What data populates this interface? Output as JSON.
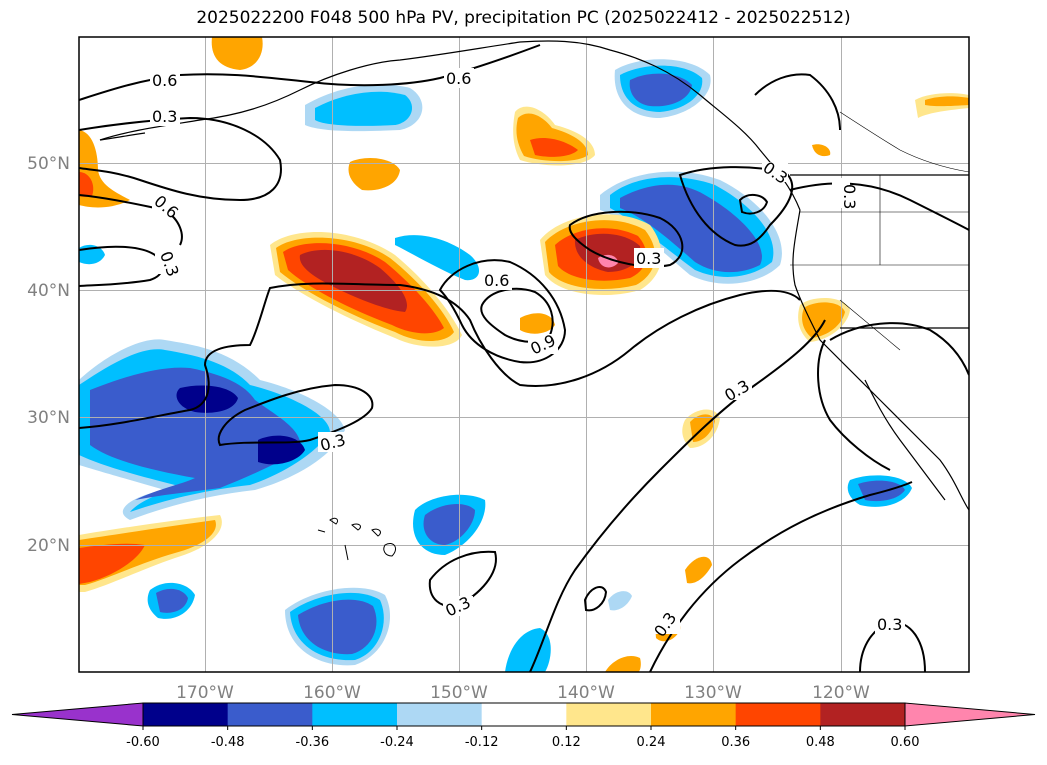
{
  "title": "2025022200 F048 500 hPa PV, precipitation PC (2025022412 - 2025022512)",
  "map": {
    "lon_range": [
      -180,
      -110
    ],
    "lat_range": [
      10,
      60
    ],
    "lon_ticks": [
      "170°W",
      "160°W",
      "150°W",
      "140°W",
      "130°W",
      "120°W"
    ],
    "lat_ticks": [
      "20°N",
      "30°N",
      "40°N",
      "50°N"
    ],
    "grid": true,
    "contour_labels": [
      "0.6",
      "0.3",
      "0.6",
      "0.6",
      "0.3",
      "0.6",
      "0.9",
      "0.3",
      "0.3",
      "0.3",
      "0.3",
      "0.3",
      "0.3",
      "0.3",
      "0.3"
    ]
  },
  "colorbar": {
    "levels": [
      "-0.60",
      "-0.48",
      "-0.36",
      "-0.24",
      "-0.12",
      "0.12",
      "0.24",
      "0.36",
      "0.48",
      "0.60"
    ],
    "colors": [
      "#9932cc",
      "#00008b",
      "#3a5ccc",
      "#00bfff",
      "#add8f4",
      "#ffffff",
      "#ffe68c",
      "#ffa500",
      "#ff4500",
      "#b22222",
      "#ff85ad"
    ],
    "extend": "both"
  }
}
